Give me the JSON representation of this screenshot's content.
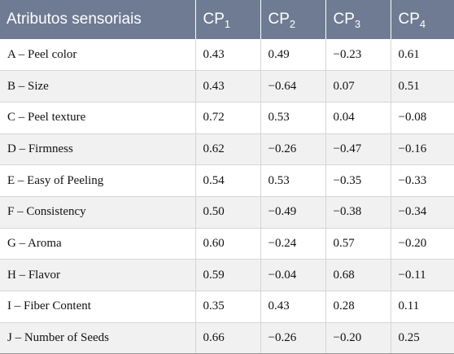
{
  "table": {
    "header": {
      "attr": "Atributos sensoriais",
      "cols": [
        {
          "base": "CP",
          "sub": "1"
        },
        {
          "base": "CP",
          "sub": "2"
        },
        {
          "base": "CP",
          "sub": "3"
        },
        {
          "base": "CP",
          "sub": "4"
        }
      ]
    },
    "rows": [
      {
        "label": "A – Peel color",
        "values": [
          "0.43",
          "0.49",
          "−0.23",
          "0.61"
        ]
      },
      {
        "label": "B – Size",
        "values": [
          "0.43",
          "−0.64",
          "0.07",
          "0.51"
        ]
      },
      {
        "label": "C – Peel texture",
        "values": [
          "0.72",
          "0.53",
          "0.04",
          "−0.08"
        ]
      },
      {
        "label": "D – Firmness",
        "values": [
          "0.62",
          "−0.26",
          "−0.47",
          "−0.16"
        ]
      },
      {
        "label": "E – Easy of Peeling",
        "values": [
          "0.54",
          "0.53",
          "−0.35",
          "−0.33"
        ]
      },
      {
        "label": "F – Consistency",
        "values": [
          "0.50",
          "−0.49",
          "−0.38",
          "−0.34"
        ]
      },
      {
        "label": "G – Aroma",
        "values": [
          "0.60",
          "−0.24",
          "0.57",
          "−0.20"
        ]
      },
      {
        "label": "H – Flavor",
        "values": [
          "0.59",
          "−0.04",
          "0.68",
          "−0.11"
        ]
      },
      {
        "label": "I – Fiber Content",
        "values": [
          "0.35",
          "0.43",
          "0.28",
          "0.11"
        ]
      },
      {
        "label": "J – Number of Seeds",
        "values": [
          "0.66",
          "−0.26",
          "−0.20",
          "0.25"
        ]
      }
    ]
  }
}
